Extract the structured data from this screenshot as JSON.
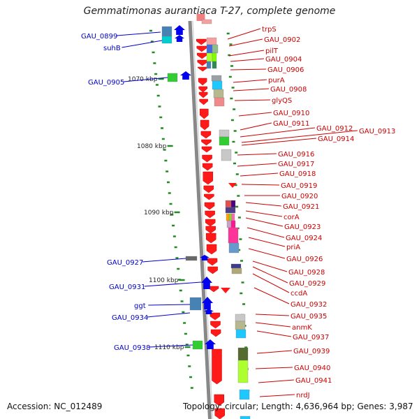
{
  "title": "Gemmatimonas aurantiaca T-27, complete genome",
  "footer": {
    "accession": "Accession: NC_012489",
    "summary": "Topology: circular; Length: 4,636,964 bp; Genes: 3,987"
  },
  "colors": {
    "left_labels": "#0000cc",
    "right_labels": "#cc0000",
    "backbone": "#888888",
    "tick": "#228b22"
  },
  "ticks": [
    "1070 kbp",
    "1080 kbp",
    "1090 kbp",
    "1100 kbp",
    "1110 kbp"
  ],
  "left_labels": [
    "GAU_0899",
    "suhB",
    "GAU_0905",
    "GAU_0927",
    "GAU_0931",
    "ggt",
    "GAU_0934",
    "GAU_0938"
  ],
  "right_labels": [
    "trpS",
    "GAU_0902",
    "pilT",
    "GAU_0904",
    "GAU_0906",
    "purA",
    "GAU_0908",
    "glyQS",
    "GAU_0910",
    "GAU_0911",
    "GAU_0912",
    "GAU_0913",
    "GAU_0914",
    "GAU_0916",
    "GAU_0917",
    "GAU_0918",
    "GAU_0919",
    "GAU_0920",
    "GAU_0921",
    "corA",
    "GAU_0923",
    "GAU_0924",
    "priA",
    "GAU_0926",
    "GAU_0928",
    "GAU_0929",
    "ccdA",
    "GAU_0932",
    "GAU_0935",
    "anmK",
    "GAU_0937",
    "GAU_0939",
    "GAU_0940",
    "GAU_0941",
    "nrdJ"
  ]
}
